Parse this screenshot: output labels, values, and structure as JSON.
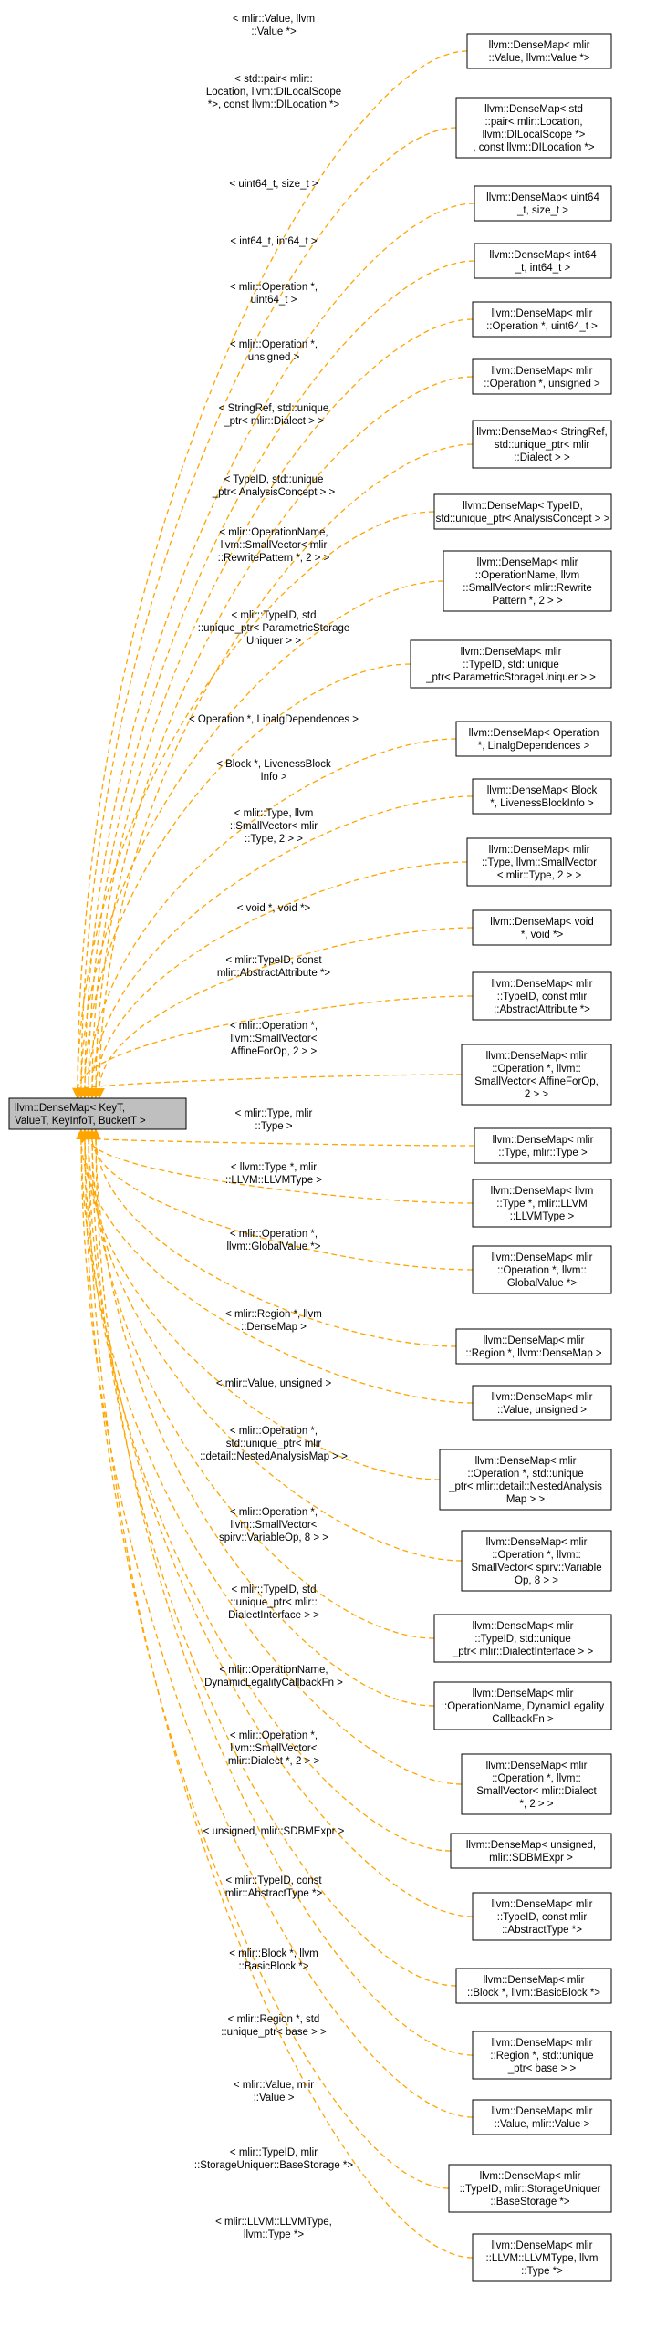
{
  "colors": {
    "edge": "#ffa500",
    "root_fill": "#bfbfbf",
    "node_fill": "#ffffff",
    "border": "#000000"
  },
  "root": {
    "lines": [
      "llvm::DenseMap< KeyT,",
      "ValueT, KeyInfoT, BucketT >"
    ]
  },
  "children": [
    {
      "node": [
        "llvm::DenseMap< mlir",
        "::Value, llvm::Value *>"
      ],
      "label": [
        "< mlir::Value, llvm",
        "::Value *>"
      ]
    },
    {
      "node": [
        "llvm::DenseMap< std",
        "::pair< mlir::Location,",
        "llvm::DILocalScope *>",
        ", const llvm::DILocation *>"
      ],
      "label": [
        "< std::pair< mlir::",
        "Location, llvm::DILocalScope",
        "*>, const llvm::DILocation *>"
      ]
    },
    {
      "node": [
        "llvm::DenseMap< uint64",
        "_t, size_t >"
      ],
      "label": [
        "< uint64_t, size_t >"
      ]
    },
    {
      "node": [
        "llvm::DenseMap< int64",
        "_t, int64_t >"
      ],
      "label": [
        "< int64_t, int64_t >"
      ]
    },
    {
      "node": [
        "llvm::DenseMap< mlir",
        "::Operation *, uint64_t >"
      ],
      "label": [
        "< mlir::Operation *,",
        "uint64_t >"
      ]
    },
    {
      "node": [
        "llvm::DenseMap< mlir",
        "::Operation *, unsigned >"
      ],
      "label": [
        "< mlir::Operation *,",
        "unsigned >"
      ]
    },
    {
      "node": [
        "llvm::DenseMap< StringRef,",
        "std::unique_ptr< mlir",
        "::Dialect > >"
      ],
      "label": [
        "< StringRef, std::unique",
        "_ptr< mlir::Dialect > >"
      ]
    },
    {
      "node": [
        "llvm::DenseMap< TypeID,",
        "std::unique_ptr< AnalysisConcept > >"
      ],
      "label": [
        "< TypeID, std::unique",
        "_ptr< AnalysisConcept > >"
      ]
    },
    {
      "node": [
        "llvm::DenseMap< mlir",
        "::OperationName, llvm",
        "::SmallVector< mlir::Rewrite",
        "Pattern *, 2 > >"
      ],
      "label": [
        "< mlir::OperationName,",
        "llvm::SmallVector< mlir",
        "::RewritePattern *, 2 > >"
      ]
    },
    {
      "node": [
        "llvm::DenseMap< mlir",
        "::TypeID, std::unique",
        "_ptr< ParametricStorageUniquer > >"
      ],
      "label": [
        "< mlir::TypeID, std",
        "::unique_ptr< ParametricStorage",
        "Uniquer > >"
      ]
    },
    {
      "node": [
        "llvm::DenseMap< Operation",
        "*, LinalgDependences >"
      ],
      "label": [
        "< Operation *, LinalgDependences >"
      ]
    },
    {
      "node": [
        "llvm::DenseMap< Block",
        "*, LivenessBlockInfo >"
      ],
      "label": [
        "< Block *, LivenessBlock",
        "Info >"
      ]
    },
    {
      "node": [
        "llvm::DenseMap< mlir",
        "::Type, llvm::SmallVector",
        "< mlir::Type, 2 > >"
      ],
      "label": [
        "< mlir::Type, llvm",
        "::SmallVector< mlir",
        "::Type, 2 > >"
      ]
    },
    {
      "node": [
        "llvm::DenseMap< void",
        "*, void *>"
      ],
      "label": [
        "< void *, void *>"
      ]
    },
    {
      "node": [
        "llvm::DenseMap< mlir",
        "::TypeID, const mlir",
        "::AbstractAttribute *>"
      ],
      "label": [
        "< mlir::TypeID, const",
        "mlir::AbstractAttribute *>"
      ]
    },
    {
      "node": [
        "llvm::DenseMap< mlir",
        "::Operation *, llvm::",
        "SmallVector< AffineForOp,",
        "2 > >"
      ],
      "label": [
        "< mlir::Operation *,",
        "llvm::SmallVector<",
        "AffineForOp, 2 > >"
      ]
    },
    {
      "node": [
        "llvm::DenseMap< mlir",
        "::Type, mlir::Type >"
      ],
      "label": [
        "< mlir::Type, mlir",
        "::Type >"
      ]
    },
    {
      "node": [
        "llvm::DenseMap< llvm",
        "::Type *, mlir::LLVM",
        "::LLVMType >"
      ],
      "label": [
        "< llvm::Type *, mlir",
        "::LLVM::LLVMType >"
      ]
    },
    {
      "node": [
        "llvm::DenseMap< mlir",
        "::Operation *, llvm::",
        "GlobalValue *>"
      ],
      "label": [
        "< mlir::Operation *,",
        "llvm::GlobalValue *>"
      ]
    },
    {
      "node": [
        "llvm::DenseMap< mlir",
        "::Region *, llvm::DenseMap >"
      ],
      "label": [
        "< mlir::Region *, llvm",
        "::DenseMap >"
      ]
    },
    {
      "node": [
        "llvm::DenseMap< mlir",
        "::Value, unsigned >"
      ],
      "label": [
        "< mlir::Value, unsigned >"
      ]
    },
    {
      "node": [
        "llvm::DenseMap< mlir",
        "::Operation *, std::unique",
        "_ptr< mlir::detail::NestedAnalysis",
        "Map > >"
      ],
      "label": [
        "< mlir::Operation *,",
        "std::unique_ptr< mlir",
        "::detail::NestedAnalysisMap > >"
      ]
    },
    {
      "node": [
        "llvm::DenseMap< mlir",
        "::Operation *, llvm::",
        "SmallVector< spirv::Variable",
        "Op, 8 > >"
      ],
      "label": [
        "< mlir::Operation *,",
        "llvm::SmallVector<",
        "spirv::VariableOp, 8 > >"
      ]
    },
    {
      "node": [
        "llvm::DenseMap< mlir",
        "::TypeID, std::unique",
        "_ptr< mlir::DialectInterface > >"
      ],
      "label": [
        "< mlir::TypeID, std",
        "::unique_ptr< mlir::",
        "DialectInterface > >"
      ]
    },
    {
      "node": [
        "llvm::DenseMap< mlir",
        "::OperationName, DynamicLegality",
        "CallbackFn >"
      ],
      "label": [
        "< mlir::OperationName,",
        "DynamicLegalityCallbackFn >"
      ]
    },
    {
      "node": [
        "llvm::DenseMap< mlir",
        "::Operation *, llvm::",
        "SmallVector< mlir::Dialect",
        "*, 2 > >"
      ],
      "label": [
        "< mlir::Operation *,",
        "llvm::SmallVector<",
        "mlir::Dialect *, 2 > >"
      ]
    },
    {
      "node": [
        "llvm::DenseMap< unsigned,",
        "mlir::SDBMExpr >"
      ],
      "label": [
        "< unsigned, mlir::SDBMExpr >"
      ]
    },
    {
      "node": [
        "llvm::DenseMap< mlir",
        "::TypeID, const mlir",
        "::AbstractType *>"
      ],
      "label": [
        "< mlir::TypeID, const",
        "mlir::AbstractType *>"
      ]
    },
    {
      "node": [
        "llvm::DenseMap< mlir",
        "::Block *, llvm::BasicBlock *>"
      ],
      "label": [
        "< mlir::Block *, llvm",
        "::BasicBlock *>"
      ]
    },
    {
      "node": [
        "llvm::DenseMap< mlir",
        "::Region *, std::unique",
        "_ptr< base > >"
      ],
      "label": [
        "< mlir::Region *, std",
        "::unique_ptr< base > >"
      ]
    },
    {
      "node": [
        "llvm::DenseMap< mlir",
        "::Value, mlir::Value >"
      ],
      "label": [
        "< mlir::Value, mlir",
        "::Value >"
      ]
    },
    {
      "node": [
        "llvm::DenseMap< mlir",
        "::TypeID, mlir::StorageUniquer",
        "::BaseStorage *>"
      ],
      "label": [
        "< mlir::TypeID, mlir",
        "::StorageUniquer::BaseStorage *>"
      ]
    },
    {
      "node": [
        "llvm::DenseMap< mlir",
        "::LLVM::LLVMType, llvm",
        "::Type *>"
      ],
      "label": [
        "< mlir::LLVM::LLVMType,",
        "llvm::Type *>"
      ]
    }
  ]
}
